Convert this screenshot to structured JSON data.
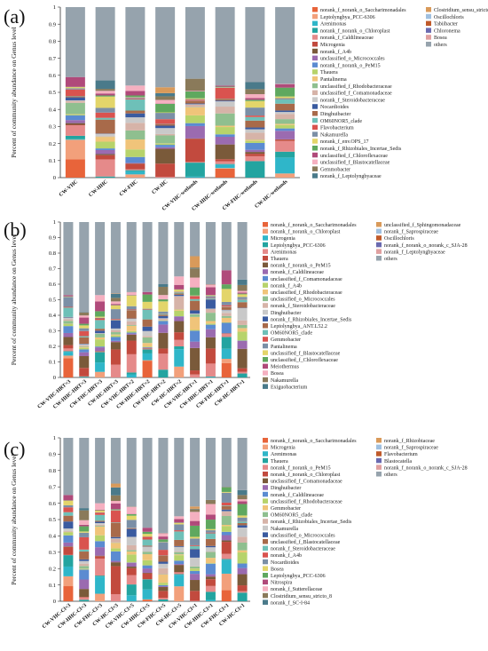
{
  "palette": [
    "#e8643a",
    "#f2a07b",
    "#2fb6c9",
    "#23a4a0",
    "#e58a8a",
    "#c24a3e",
    "#7a5a3a",
    "#9b6bb0",
    "#5b8bd1",
    "#b7d36b",
    "#f0c47a",
    "#8fbf8f",
    "#d6b3a8",
    "#c9c9c9",
    "#3a5ba0",
    "#a86a4a",
    "#6ec0b8",
    "#d9534f",
    "#7b8fa6",
    "#e3d56a",
    "#5fa85f",
    "#b04a7a",
    "#f5b0c0",
    "#8a7a5a",
    "#4a7a8a",
    "#d99a5a",
    "#a0c0e0",
    "#c05a2a",
    "#6a6ab0",
    "#e0a0a0",
    "#70b0d0"
  ],
  "others_color": "#96a3ad",
  "y_ticks": [
    "0",
    "0.1",
    "0.2",
    "0.3",
    "0.4",
    "0.5",
    "0.6",
    "0.7",
    "0.8",
    "0.9",
    "1"
  ],
  "ylabel": "Percent of community abundance on Genus level",
  "chart_data": [
    {
      "panel": "(a)",
      "type": "bar",
      "stacked": true,
      "ylim": [
        0,
        1
      ],
      "ylabel": "Percent of community abundance on Genus level",
      "categories": [
        "CW-VHC",
        "CW-HHC",
        "CW-FHC",
        "CW-HC",
        "CW-VHC-wetlands",
        "CW-HHC-wetlands",
        "CW-FHC-wetlands",
        "CW-HC-wetlands"
      ],
      "others_fraction": [
        0.41,
        0.43,
        0.46,
        0.47,
        0.42,
        0.46,
        0.44,
        0.45
      ],
      "legend": [
        "norank_f_norank_o_Saccharimonadales",
        "Leptolyngbya_PCC-6306",
        "Arenimonas",
        "norank_f_norank_o_Chloroplast",
        "norank_f_Caldilineaceae",
        "Microgenia",
        "norank_f_A4b",
        "unclassified_o_Micrococcales",
        "norank_f_norank_o_PeM15",
        "Thauera",
        "Pantalinema",
        "unclassified_f_Rhodobacteraceae",
        "unclassified_f_Comamonadaceae",
        "norank_f_Steroidobacteraceae",
        "Nocardioides",
        "Dinghuibacter",
        "OM60NOR5_clade",
        "Flavobacterium",
        "Nakamurella",
        "norank_f_env.OPS_17",
        "norank_f_Rhizobiales_Incertae_Sedis",
        "unclassified_f_Chloroflexaceae",
        "unclassified_f_Blastocatellaceae",
        "Gemmobacter",
        "norank_f_Leptolyngbyaceae",
        "Clostridium_sensu_stricto_8",
        "Oscillochloris",
        "Tabiibacter",
        "Chloronema",
        "Bosea",
        "others"
      ]
    },
    {
      "panel": "(b)",
      "type": "bar",
      "stacked": true,
      "ylim": [
        0,
        1
      ],
      "ylabel": "Percent of community abundance on Genus level",
      "categories": [
        "CW-VHC-HRT=3",
        "CW-HHC-HRT=3",
        "CW-FHC-HRT=3",
        "CW-HC-HRT=3",
        "CW-VHC-HRT=2",
        "CW-HHC-HRT=2",
        "CW-FHC-HRT=2",
        "CW-HC-HRT=2",
        "CW-VHC-HRT=1",
        "CW-HHC-HRT=1",
        "CW-FHC-HRT=1",
        "CW-HC-HRT=1"
      ],
      "others_fraction": [
        0.47,
        0.58,
        0.47,
        0.46,
        0.45,
        0.45,
        0.4,
        0.35,
        0.22,
        0.4,
        0.31,
        0.37
      ],
      "legend": [
        "norank_f_norank_o_Saccharimonadales",
        "norank_f_norank_o_Chloroplast",
        "Microgenia",
        "Leptolyngbya_PCC-6306",
        "Arenimonas",
        "Thauera",
        "norank_f_norank_o_PeM15",
        "norank_f_Caldilineaceae",
        "unclassified_f_Comamonadaceae",
        "norank_f_A4b",
        "unclassified_f_Rhodobacteraceae",
        "unclassified_o_Micrococcales",
        "norank_f_Steroidobacteraceae",
        "Dinghuibacter",
        "norank_f_Rhizobiales_Incertae_Sedis",
        "Leptolyngbya_ANT.L52.2",
        "OM60NOR5_clade",
        "Gemmobacter",
        "Pantalinema",
        "unclassified_f_Blastocatellaceae",
        "unclassified_f_Chloroflexaceae",
        "Meiothermus",
        "Bosea",
        "Nakamurella",
        "Exiguobacterium",
        "unclassified_f_Sphingomonadaceae",
        "norank_f_Saprospiraceae",
        "Oscillochloris",
        "norank_f_norank_o_norank_c_SJA-28",
        "norank_f_Leptolyngbyaceae",
        "others"
      ]
    },
    {
      "panel": "(c)",
      "type": "bar",
      "stacked": true,
      "ylim": [
        0,
        1
      ],
      "ylabel": "Percent of community abundance on Genus level",
      "categories": [
        "CW-VHC-Cl=3",
        "CW-HHC-Cl=3",
        "CW-FHC-Cl=3",
        "CW-HC-Cl=3",
        "CW-VHC-Cl=5",
        "CW-HHC-Cl=5",
        "CW-FHC-Cl=5",
        "CW-HC-Cl=5",
        "CW-VHC-Cl=1",
        "CW-HHC-Cl=1",
        "CW-FHC-Cl=1",
        "CW-HC-Cl=1"
      ],
      "others_fraction": [
        0.35,
        0.43,
        0.4,
        0.28,
        0.42,
        0.55,
        0.58,
        0.48,
        0.42,
        0.38,
        0.3,
        0.32
      ],
      "legend": [
        "norank_f_norank_o_Saccharimonadales",
        "Microgenia",
        "Arenimonas",
        "Thauera",
        "norank_f_norank_o_PeM15",
        "norank_f_norank_o_Chloroplast",
        "unclassified_f_Comamonadaceae",
        "Dinghuibacter",
        "norank_f_Caldilineaceae",
        "unclassified_f_Rhodobacteraceae",
        "Gemmobacter",
        "OM60NOR5_clade",
        "norank_f_Rhizobiales_Incertae_Sedis",
        "Nakamurella",
        "unclassified_o_Micrococcales",
        "unclassified_f_Blastocatellaceae",
        "norank_f_Steroidobacteraceae",
        "norank_f_A4b",
        "Nocardioides",
        "Bosea",
        "Leptolyngbya_PCC-6306",
        "Nitrospira",
        "norank_f_Sutterellaceae",
        "Clostridium_sensu_stricto_8",
        "norank_f_SC-I-84",
        "norank_f_Rhizobiaceae",
        "norank_f_Saprospiraceae",
        "Flavobacterium",
        "Blastocatella",
        "norank_f_norank_o_norank_c_SJA-28",
        "others"
      ]
    }
  ]
}
